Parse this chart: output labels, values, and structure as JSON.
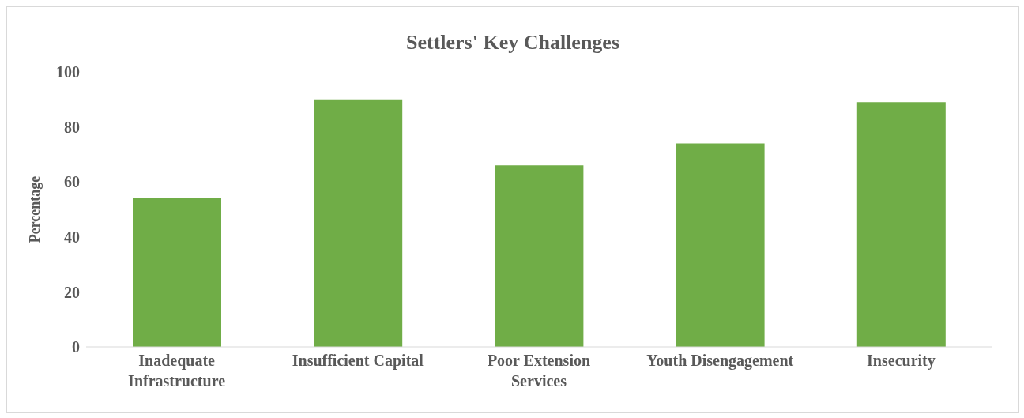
{
  "chart_data": {
    "type": "bar",
    "title": "Settlers' Key Challenges",
    "ylabel": "Percentage",
    "categories": [
      "Inadequate Infrastructure",
      "Insufficient Capital",
      "Poor Extension Services",
      "Youth Disengagement",
      "Insecurity"
    ],
    "values": [
      54,
      90,
      66,
      74,
      89
    ],
    "color": "#70ad47",
    "ylim": [
      0,
      100
    ],
    "yticks": [
      0,
      20,
      40,
      60,
      80,
      100
    ],
    "grid": false
  }
}
